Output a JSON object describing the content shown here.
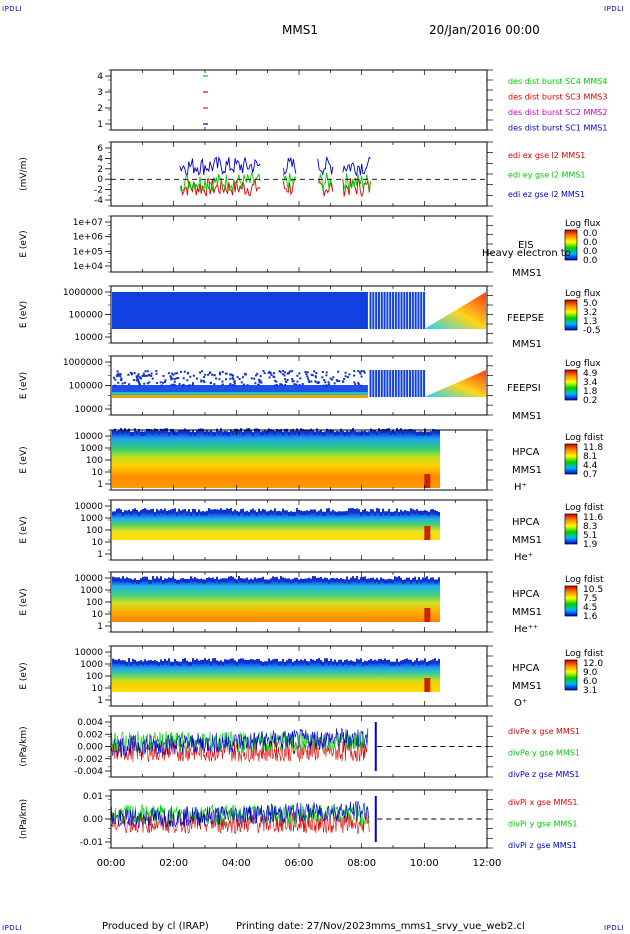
{
  "header": {
    "corner_mark": "IPDLI",
    "spacecraft": "MMS1",
    "datetime": "20/Jan/2016 00:00"
  },
  "footer": {
    "produced_by": "Produced by cl (IRAP)",
    "printing_date": "Printing date: 27/Nov/2023",
    "filename": "mms_mms1_srvy_vue_web2.cl"
  },
  "chart_data": {
    "type": "multi-panel time series",
    "x_ticks": [
      "00:00",
      "02:00",
      "04:00",
      "06:00",
      "08:00",
      "10:00",
      "12:00"
    ],
    "x_range_hours": [
      0,
      12
    ],
    "panels": [
      {
        "id": "burst",
        "yticks": [
          "4",
          "3",
          "2",
          "1"
        ],
        "ylabel": "",
        "series": [
          {
            "name": "des dist burst SC1 MMS1",
            "color": "#0000cc",
            "value": 1,
            "time_h": 3.0
          },
          {
            "name": "des dist burst SC2 MMS2",
            "color": "#cc00cc",
            "value": 2,
            "time_h": 3.0
          },
          {
            "name": "des dist burst SC3 MMS3",
            "color": "#dd0000",
            "value": 3,
            "time_h": 3.0
          },
          {
            "name": "des dist burst SC4 MMS4",
            "color": "#00cc00",
            "value": 4,
            "time_h": 3.0
          }
        ]
      },
      {
        "id": "edi",
        "ylabel": "(mV/m)",
        "yticks": [
          "6",
          "4",
          "2",
          "0",
          "-2",
          "-4"
        ],
        "ylim": [
          -5,
          7
        ],
        "dashed_zero": true,
        "series": [
          {
            "name": "edi ex gse l2 MMS1",
            "color": "#dd0000"
          },
          {
            "name": "edi ey gse l2 MMS1",
            "color": "#00cc00"
          },
          {
            "name": "edi ez gse l2 MMS1",
            "color": "#0000cc"
          }
        ]
      },
      {
        "id": "eis",
        "ylabel": "E (eV)",
        "yticks": [
          "1e+07",
          "1e+06",
          "1e+05",
          "1e+04"
        ],
        "instrument": [
          "EIS",
          "Heavy electron to",
          "MMS1"
        ],
        "scale_title": "Log flux",
        "scale_values": [
          "0.0",
          "0.0",
          "0.0",
          "0.0"
        ]
      },
      {
        "id": "feepse",
        "ylabel": "E (eV)",
        "yticks": [
          "1000000",
          "100000",
          "10000"
        ],
        "instrument": [
          "FEEPSE",
          "MMS1"
        ],
        "scale_title": "Log flux",
        "scale_values": [
          "5.0",
          "3.2",
          "1.3",
          "-0.5"
        ]
      },
      {
        "id": "feepsi",
        "ylabel": "E (eV)",
        "yticks": [
          "1000000",
          "100000",
          "10000"
        ],
        "instrument": [
          "FEEPSI",
          "MMS1"
        ],
        "scale_title": "Log flux",
        "scale_values": [
          "4.9",
          "3.4",
          "1.8",
          "0.2"
        ]
      },
      {
        "id": "hpca_h",
        "ylabel": "E (eV)",
        "yticks": [
          "10000",
          "1000",
          "100",
          "10",
          "1"
        ],
        "instrument": [
          "HPCA",
          "MMS1",
          "H⁺"
        ],
        "scale_title": "Log fdist",
        "scale_values": [
          "11.8",
          "8.1",
          "4.4",
          "0.7"
        ]
      },
      {
        "id": "hpca_he",
        "ylabel": "E (eV)",
        "yticks": [
          "10000",
          "1000",
          "100",
          "10",
          "1"
        ],
        "instrument": [
          "HPCA",
          "MMS1",
          "He⁺"
        ],
        "scale_title": "Log fdist",
        "scale_values": [
          "11.6",
          "8.3",
          "5.1",
          "1.9"
        ]
      },
      {
        "id": "hpca_hepp",
        "ylabel": "E (eV)",
        "yticks": [
          "10000",
          "1000",
          "100",
          "10",
          "1"
        ],
        "instrument": [
          "HPCA",
          "MMS1",
          "He⁺⁺"
        ],
        "scale_title": "Log fdist",
        "scale_values": [
          "10.5",
          "7.5",
          "4.5",
          "1.6"
        ]
      },
      {
        "id": "hpca_o",
        "ylabel": "E (eV)",
        "yticks": [
          "10000",
          "1000",
          "100",
          "10",
          "1"
        ],
        "instrument": [
          "HPCA",
          "MMS1",
          "O⁺"
        ],
        "scale_title": "Log fdist",
        "scale_values": [
          "12.0",
          "9.0",
          "6.0",
          "3.1"
        ]
      },
      {
        "id": "divpe",
        "ylabel": "(nPa/km)",
        "yticks": [
          "0.004",
          "0.002",
          "0.000",
          "-0.002",
          "-0.004"
        ],
        "ylim": [
          -0.0045,
          0.0045
        ],
        "dashed_zero": true,
        "series": [
          {
            "name": "divPe x gse MMS1",
            "color": "#dd0000"
          },
          {
            "name": "divPe y gse MMS1",
            "color": "#00cc00"
          },
          {
            "name": "divPe z gse MMS1",
            "color": "#0000cc"
          }
        ]
      },
      {
        "id": "divpi",
        "ylabel": "(nPa/km)",
        "yticks": [
          "0.01",
          "0.00",
          "-0.01"
        ],
        "ylim": [
          -0.015,
          0.015
        ],
        "dashed_zero": true,
        "series": [
          {
            "name": "divPi x gse MMS1",
            "color": "#dd0000"
          },
          {
            "name": "divPi y gse MMS1",
            "color": "#00cc00"
          },
          {
            "name": "divPi z gse MMS1",
            "color": "#0000cc"
          }
        ]
      }
    ]
  }
}
